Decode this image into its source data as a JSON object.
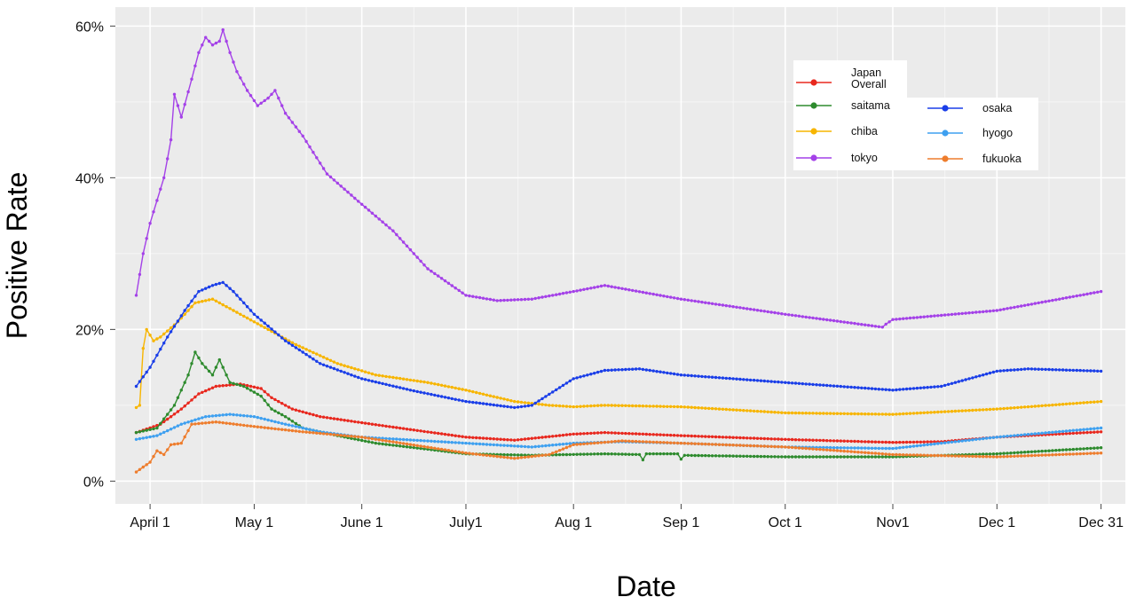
{
  "chart_data": {
    "type": "line",
    "title": "",
    "xlabel": "Date",
    "ylabel": "Positive Rate",
    "x_type": "date",
    "xlim": [
      "2020-03-22",
      "2021-01-07"
    ],
    "ylim": [
      -0.03,
      0.625
    ],
    "y_ticks": [
      {
        "value": 0.0,
        "label": "0%"
      },
      {
        "value": 0.2,
        "label": "20%"
      },
      {
        "value": 0.4,
        "label": "40%"
      },
      {
        "value": 0.6,
        "label": "60%"
      }
    ],
    "x_ticks": [
      {
        "date": "2020-04-01",
        "label": "April 1"
      },
      {
        "date": "2020-05-01",
        "label": "May 1"
      },
      {
        "date": "2020-06-01",
        "label": "June 1"
      },
      {
        "date": "2020-07-01",
        "label": "July1"
      },
      {
        "date": "2020-08-01",
        "label": "Aug 1"
      },
      {
        "date": "2020-09-01",
        "label": "Sep 1"
      },
      {
        "date": "2020-10-01",
        "label": "Oct 1"
      },
      {
        "date": "2020-11-01",
        "label": "Nov1"
      },
      {
        "date": "2020-12-01",
        "label": "Dec 1"
      },
      {
        "date": "2020-12-31",
        "label": "Dec 31"
      }
    ],
    "grid": true,
    "legend_position": "top-right",
    "series": [
      {
        "name": "Japan Overall",
        "color": "#e8281e",
        "points": [
          [
            "2020-03-28",
            0.064
          ],
          [
            "2020-04-04",
            0.075
          ],
          [
            "2020-04-10",
            0.095
          ],
          [
            "2020-04-15",
            0.115
          ],
          [
            "2020-04-20",
            0.125
          ],
          [
            "2020-04-27",
            0.128
          ],
          [
            "2020-05-03",
            0.122
          ],
          [
            "2020-05-06",
            0.11
          ],
          [
            "2020-05-12",
            0.095
          ],
          [
            "2020-05-20",
            0.085
          ],
          [
            "2020-06-01",
            0.077
          ],
          [
            "2020-06-15",
            0.068
          ],
          [
            "2020-07-01",
            0.058
          ],
          [
            "2020-07-15",
            0.054
          ],
          [
            "2020-08-01",
            0.062
          ],
          [
            "2020-08-10",
            0.064
          ],
          [
            "2020-09-01",
            0.06
          ],
          [
            "2020-10-01",
            0.055
          ],
          [
            "2020-11-01",
            0.051
          ],
          [
            "2020-11-15",
            0.052
          ],
          [
            "2020-12-01",
            0.058
          ],
          [
            "2020-12-31",
            0.065
          ]
        ]
      },
      {
        "name": "saitama",
        "color": "#2e8b2e",
        "points": [
          [
            "2020-03-28",
            0.064
          ],
          [
            "2020-04-03",
            0.07
          ],
          [
            "2020-04-08",
            0.1
          ],
          [
            "2020-04-12",
            0.14
          ],
          [
            "2020-04-14",
            0.17
          ],
          [
            "2020-04-16",
            0.155
          ],
          [
            "2020-04-19",
            0.14
          ],
          [
            "2020-04-21",
            0.16
          ],
          [
            "2020-04-24",
            0.13
          ],
          [
            "2020-04-28",
            0.125
          ],
          [
            "2020-05-03",
            0.112
          ],
          [
            "2020-05-06",
            0.095
          ],
          [
            "2020-05-10",
            0.085
          ],
          [
            "2020-05-15",
            0.07
          ],
          [
            "2020-05-25",
            0.06
          ],
          [
            "2020-06-05",
            0.05
          ],
          [
            "2020-06-20",
            0.042
          ],
          [
            "2020-07-01",
            0.036
          ],
          [
            "2020-07-20",
            0.034
          ],
          [
            "2020-08-10",
            0.036
          ],
          [
            "2020-08-20",
            0.035
          ],
          [
            "2020-08-21",
            0.028
          ],
          [
            "2020-08-22",
            0.036
          ],
          [
            "2020-08-31",
            0.036
          ],
          [
            "2020-09-01",
            0.029
          ],
          [
            "2020-09-02",
            0.034
          ],
          [
            "2020-10-01",
            0.032
          ],
          [
            "2020-11-01",
            0.032
          ],
          [
            "2020-12-01",
            0.036
          ],
          [
            "2020-12-31",
            0.044
          ]
        ]
      },
      {
        "name": "chiba",
        "color": "#f7b500",
        "points": [
          [
            "2020-03-28",
            0.097
          ],
          [
            "2020-03-29",
            0.1
          ],
          [
            "2020-03-30",
            0.175
          ],
          [
            "2020-03-31",
            0.2
          ],
          [
            "2020-04-02",
            0.185
          ],
          [
            "2020-04-04",
            0.19
          ],
          [
            "2020-04-09",
            0.21
          ],
          [
            "2020-04-14",
            0.235
          ],
          [
            "2020-04-19",
            0.24
          ],
          [
            "2020-04-25",
            0.225
          ],
          [
            "2020-05-03",
            0.205
          ],
          [
            "2020-05-13",
            0.18
          ],
          [
            "2020-05-25",
            0.155
          ],
          [
            "2020-06-05",
            0.14
          ],
          [
            "2020-06-20",
            0.13
          ],
          [
            "2020-07-01",
            0.12
          ],
          [
            "2020-07-15",
            0.105
          ],
          [
            "2020-07-25",
            0.1
          ],
          [
            "2020-08-01",
            0.098
          ],
          [
            "2020-08-10",
            0.1
          ],
          [
            "2020-09-01",
            0.098
          ],
          [
            "2020-10-01",
            0.09
          ],
          [
            "2020-11-01",
            0.088
          ],
          [
            "2020-12-01",
            0.095
          ],
          [
            "2020-12-31",
            0.105
          ]
        ]
      },
      {
        "name": "tokyo",
        "color": "#a441e8",
        "points": [
          [
            "2020-03-28",
            0.245
          ],
          [
            "2020-03-30",
            0.3
          ],
          [
            "2020-04-01",
            0.34
          ],
          [
            "2020-04-03",
            0.37
          ],
          [
            "2020-04-05",
            0.4
          ],
          [
            "2020-04-07",
            0.45
          ],
          [
            "2020-04-08",
            0.51
          ],
          [
            "2020-04-10",
            0.48
          ],
          [
            "2020-04-13",
            0.53
          ],
          [
            "2020-04-15",
            0.565
          ],
          [
            "2020-04-17",
            0.585
          ],
          [
            "2020-04-19",
            0.575
          ],
          [
            "2020-04-21",
            0.58
          ],
          [
            "2020-04-22",
            0.595
          ],
          [
            "2020-04-24",
            0.565
          ],
          [
            "2020-04-26",
            0.54
          ],
          [
            "2020-04-29",
            0.515
          ],
          [
            "2020-05-02",
            0.495
          ],
          [
            "2020-05-05",
            0.505
          ],
          [
            "2020-05-07",
            0.515
          ],
          [
            "2020-05-10",
            0.485
          ],
          [
            "2020-05-15",
            0.455
          ],
          [
            "2020-05-22",
            0.405
          ],
          [
            "2020-06-01",
            0.365
          ],
          [
            "2020-06-10",
            0.33
          ],
          [
            "2020-06-20",
            0.28
          ],
          [
            "2020-07-01",
            0.245
          ],
          [
            "2020-07-10",
            0.238
          ],
          [
            "2020-07-20",
            0.24
          ],
          [
            "2020-08-01",
            0.25
          ],
          [
            "2020-08-10",
            0.258
          ],
          [
            "2020-09-01",
            0.24
          ],
          [
            "2020-10-01",
            0.22
          ],
          [
            "2020-10-29",
            0.203
          ],
          [
            "2020-10-30",
            0.207
          ],
          [
            "2020-11-01",
            0.213
          ],
          [
            "2020-12-01",
            0.225
          ],
          [
            "2020-12-31",
            0.25
          ]
        ]
      },
      {
        "name": "osaka",
        "color": "#1a3ee8",
        "points": [
          [
            "2020-03-28",
            0.125
          ],
          [
            "2020-04-01",
            0.15
          ],
          [
            "2020-04-06",
            0.19
          ],
          [
            "2020-04-11",
            0.225
          ],
          [
            "2020-04-15",
            0.25
          ],
          [
            "2020-04-19",
            0.258
          ],
          [
            "2020-04-22",
            0.262
          ],
          [
            "2020-04-25",
            0.25
          ],
          [
            "2020-05-01",
            0.22
          ],
          [
            "2020-05-10",
            0.185
          ],
          [
            "2020-05-20",
            0.155
          ],
          [
            "2020-06-01",
            0.135
          ],
          [
            "2020-06-15",
            0.12
          ],
          [
            "2020-07-01",
            0.105
          ],
          [
            "2020-07-15",
            0.097
          ],
          [
            "2020-07-20",
            0.1
          ],
          [
            "2020-08-01",
            0.135
          ],
          [
            "2020-08-10",
            0.146
          ],
          [
            "2020-08-20",
            0.148
          ],
          [
            "2020-09-01",
            0.14
          ],
          [
            "2020-10-01",
            0.13
          ],
          [
            "2020-11-01",
            0.12
          ],
          [
            "2020-11-15",
            0.125
          ],
          [
            "2020-12-01",
            0.145
          ],
          [
            "2020-12-10",
            0.148
          ],
          [
            "2020-12-31",
            0.145
          ]
        ]
      },
      {
        "name": "hyogo",
        "color": "#3ea0f0",
        "points": [
          [
            "2020-03-28",
            0.055
          ],
          [
            "2020-04-03",
            0.06
          ],
          [
            "2020-04-10",
            0.075
          ],
          [
            "2020-04-17",
            0.085
          ],
          [
            "2020-04-24",
            0.088
          ],
          [
            "2020-05-01",
            0.085
          ],
          [
            "2020-05-10",
            0.075
          ],
          [
            "2020-05-20",
            0.065
          ],
          [
            "2020-06-01",
            0.058
          ],
          [
            "2020-07-01",
            0.05
          ],
          [
            "2020-07-20",
            0.045
          ],
          [
            "2020-08-01",
            0.05
          ],
          [
            "2020-08-15",
            0.052
          ],
          [
            "2020-09-01",
            0.05
          ],
          [
            "2020-10-01",
            0.045
          ],
          [
            "2020-11-01",
            0.043
          ],
          [
            "2020-12-01",
            0.058
          ],
          [
            "2020-12-31",
            0.07
          ]
        ]
      },
      {
        "name": "fukuoka",
        "color": "#ee7d2d",
        "points": [
          [
            "2020-03-28",
            0.012
          ],
          [
            "2020-04-01",
            0.025
          ],
          [
            "2020-04-03",
            0.04
          ],
          [
            "2020-04-05",
            0.035
          ],
          [
            "2020-04-07",
            0.048
          ],
          [
            "2020-04-10",
            0.05
          ],
          [
            "2020-04-13",
            0.075
          ],
          [
            "2020-04-20",
            0.078
          ],
          [
            "2020-05-01",
            0.072
          ],
          [
            "2020-05-15",
            0.065
          ],
          [
            "2020-06-01",
            0.058
          ],
          [
            "2020-07-01",
            0.037
          ],
          [
            "2020-07-15",
            0.03
          ],
          [
            "2020-07-25",
            0.035
          ],
          [
            "2020-08-01",
            0.048
          ],
          [
            "2020-08-15",
            0.053
          ],
          [
            "2020-09-01",
            0.05
          ],
          [
            "2020-10-01",
            0.045
          ],
          [
            "2020-11-01",
            0.035
          ],
          [
            "2020-12-01",
            0.032
          ],
          [
            "2020-12-31",
            0.037
          ]
        ]
      }
    ]
  }
}
